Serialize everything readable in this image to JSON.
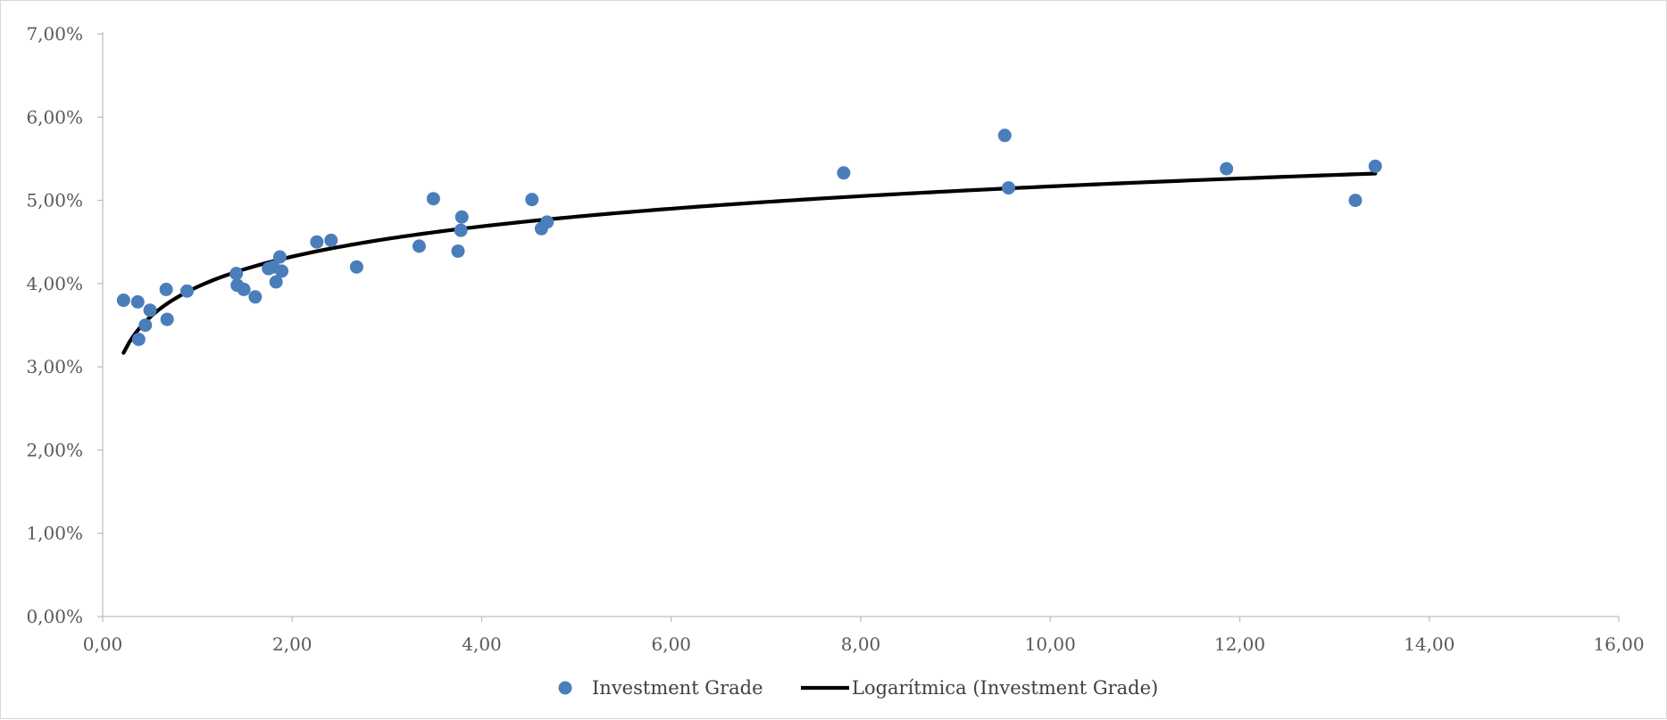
{
  "chart_data": {
    "type": "scatter",
    "title": "",
    "xlabel": "",
    "ylabel": "",
    "xlim": [
      0,
      16
    ],
    "ylim": [
      0,
      0.07
    ],
    "x_ticks": [
      0,
      2,
      4,
      6,
      8,
      10,
      12,
      14,
      16
    ],
    "y_ticks": [
      0,
      0.01,
      0.02,
      0.03,
      0.04,
      0.05,
      0.06,
      0.07
    ],
    "x_tick_labels": [
      "0,00",
      "2,00",
      "4,00",
      "6,00",
      "8,00",
      "10,00",
      "12,00",
      "14,00",
      "16,00"
    ],
    "y_tick_labels": [
      "0,00%",
      "1,00%",
      "2,00%",
      "3,00%",
      "4,00%",
      "5,00%",
      "6,00%",
      "7,00%"
    ],
    "grid": false,
    "legend_position": "bottom",
    "series": [
      {
        "name": "Investment Grade",
        "kind": "scatter",
        "color": "#4a7ebb",
        "points": [
          [
            0.22,
            0.038
          ],
          [
            0.37,
            0.0378
          ],
          [
            0.38,
            0.0333
          ],
          [
            0.45,
            0.035
          ],
          [
            0.5,
            0.0368
          ],
          [
            0.67,
            0.0393
          ],
          [
            0.68,
            0.0357
          ],
          [
            0.89,
            0.0391
          ],
          [
            1.41,
            0.0412
          ],
          [
            1.42,
            0.0398
          ],
          [
            1.49,
            0.0393
          ],
          [
            1.61,
            0.0384
          ],
          [
            1.75,
            0.0418
          ],
          [
            1.8,
            0.042
          ],
          [
            1.83,
            0.0402
          ],
          [
            1.87,
            0.0432
          ],
          [
            1.89,
            0.0415
          ],
          [
            2.26,
            0.045
          ],
          [
            2.41,
            0.0452
          ],
          [
            2.68,
            0.042
          ],
          [
            3.34,
            0.0445
          ],
          [
            3.49,
            0.0502
          ],
          [
            3.75,
            0.0439
          ],
          [
            3.78,
            0.0464
          ],
          [
            3.79,
            0.048
          ],
          [
            4.53,
            0.0501
          ],
          [
            4.63,
            0.0466
          ],
          [
            4.69,
            0.0474
          ],
          [
            7.82,
            0.0533
          ],
          [
            9.52,
            0.0578
          ],
          [
            9.56,
            0.0515
          ],
          [
            11.86,
            0.0538
          ],
          [
            13.22,
            0.05
          ],
          [
            13.43,
            0.0541
          ]
        ]
      },
      {
        "name": "Logarítmica (Investment Grade)",
        "kind": "trendline-log",
        "color": "#000000",
        "x_range": [
          0.22,
          13.43
        ],
        "coef_a": 0.00524,
        "coef_b": 0.03961
      }
    ]
  }
}
